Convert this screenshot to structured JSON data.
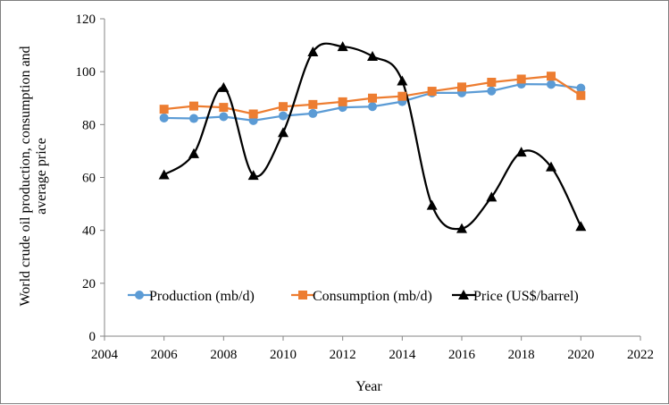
{
  "chart_data": {
    "type": "line",
    "title": "",
    "xlabel": "Year",
    "ylabel_lines": [
      "World crude oil production, consumption and",
      "average price"
    ],
    "xlim": [
      2004,
      2022
    ],
    "ylim": [
      0,
      120
    ],
    "xticks": [
      2004,
      2006,
      2008,
      2010,
      2012,
      2014,
      2016,
      2018,
      2020,
      2022
    ],
    "yticks": [
      0,
      20,
      40,
      60,
      80,
      100,
      120
    ],
    "grid": false,
    "legend_position": "bottom-inside",
    "x": [
      2006,
      2007,
      2008,
      2009,
      2010,
      2011,
      2012,
      2013,
      2014,
      2015,
      2016,
      2017,
      2018,
      2019,
      2020
    ],
    "series": [
      {
        "name": "Production (mb/d)",
        "color": "#5b9bd5",
        "marker": "circle",
        "smooth": false,
        "values": [
          82.5,
          82.3,
          83.0,
          81.5,
          83.3,
          84.2,
          86.5,
          86.8,
          88.7,
          92.0,
          92.0,
          92.7,
          95.3,
          95.2,
          93.8
        ]
      },
      {
        "name": "Consumption (mb/d)",
        "color": "#ed7d31",
        "marker": "square",
        "smooth": false,
        "values": [
          85.8,
          87.0,
          86.5,
          84.0,
          86.8,
          87.6,
          88.6,
          90.0,
          90.7,
          92.6,
          94.2,
          96.0,
          97.2,
          98.3,
          91.0
        ]
      },
      {
        "name": "Price (US$/barrel)",
        "color": "#000000",
        "marker": "triangle",
        "smooth": true,
        "values": [
          61.0,
          69.0,
          94.0,
          60.8,
          77.0,
          107.5,
          109.5,
          105.8,
          96.5,
          49.5,
          40.7,
          52.6,
          69.6,
          64.0,
          41.5
        ]
      }
    ]
  }
}
